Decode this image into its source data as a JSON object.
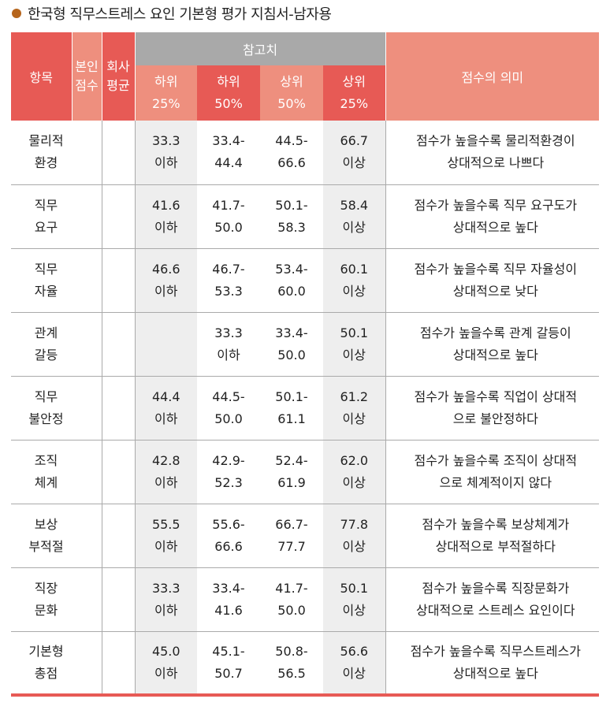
{
  "title": "한국형 직무스트레스 요인 기본형 평가 지침서-남자용",
  "colors": {
    "accent_red": "#e75a55",
    "accent_light": "#ee8f7e",
    "ref_gray": "#a9a9a9",
    "bullet": "#b6651c"
  },
  "header": {
    "item": "항목",
    "self_score": [
      "본인",
      "점수"
    ],
    "company_avg": [
      "회사",
      "평균"
    ],
    "reference": "참고치",
    "meaning": "점수의 의미",
    "sub": [
      [
        "하위",
        "25%"
      ],
      [
        "하위",
        "50%"
      ],
      [
        "상위",
        "50%"
      ],
      [
        "상위",
        "25%"
      ]
    ]
  },
  "rows": [
    {
      "item": [
        "물리적",
        "환경"
      ],
      "ref": [
        [
          "33.3",
          "이하"
        ],
        [
          "33.4-",
          "44.4"
        ],
        [
          "44.5-",
          "66.6"
        ],
        [
          "66.7",
          "이상"
        ]
      ],
      "meaning": [
        "점수가 높을수록  물리적환경이",
        "상대적으로 나쁘다"
      ]
    },
    {
      "item": [
        "직무",
        "요구"
      ],
      "ref": [
        [
          "41.6",
          "이하"
        ],
        [
          "41.7-",
          "50.0"
        ],
        [
          "50.1-",
          "58.3"
        ],
        [
          "58.4",
          "이상"
        ]
      ],
      "meaning": [
        "점수가 높을수록  직무  요구도가",
        "상대적으로 높다"
      ]
    },
    {
      "item": [
        "직무",
        "자율"
      ],
      "ref": [
        [
          "46.6",
          "이하"
        ],
        [
          "46.7-",
          "53.3"
        ],
        [
          "53.4-",
          "60.0"
        ],
        [
          "60.1",
          "이상"
        ]
      ],
      "meaning": [
        "점수가 높을수록  직무  자율성이",
        "상대적으로 낮다"
      ]
    },
    {
      "item": [
        "관계",
        "갈등"
      ],
      "ref": [
        [
          "",
          ""
        ],
        [
          "33.3",
          "이하"
        ],
        [
          "33.4-",
          "50.0"
        ],
        [
          "50.1",
          "이상"
        ]
      ],
      "meaning": [
        "점수가 높을수록 관계 갈등이",
        "상대적으로 높다"
      ]
    },
    {
      "item": [
        "직무",
        "불안정"
      ],
      "ref": [
        [
          "44.4",
          "이하"
        ],
        [
          "44.5-",
          "50.0"
        ],
        [
          "50.1-",
          "61.1"
        ],
        [
          "61.2",
          "이상"
        ]
      ],
      "meaning": [
        "점수가 높을수록  직업이 상대적",
        "으로 불안정하다"
      ]
    },
    {
      "item": [
        "조직",
        "체계"
      ],
      "ref": [
        [
          "42.8",
          "이하"
        ],
        [
          "42.9-",
          "52.3"
        ],
        [
          "52.4-",
          "61.9"
        ],
        [
          "62.0",
          "이상"
        ]
      ],
      "meaning": [
        "점수가 높을수록  조직이 상대적",
        "으로 체계적이지 않다"
      ]
    },
    {
      "item": [
        "보상",
        "부적절"
      ],
      "ref": [
        [
          "55.5",
          "이하"
        ],
        [
          "55.6-",
          "66.6"
        ],
        [
          "66.7-",
          "77.7"
        ],
        [
          "77.8",
          "이상"
        ]
      ],
      "meaning": [
        "점수가 높을수록 보상체계가",
        "상대적으로 부적절하다"
      ]
    },
    {
      "item": [
        "직장",
        "문화"
      ],
      "ref": [
        [
          "33.3",
          "이하"
        ],
        [
          "33.4-",
          "41.6"
        ],
        [
          "41.7-",
          "50.0"
        ],
        [
          "50.1",
          "이상"
        ]
      ],
      "meaning": [
        "점수가 높을수록 직장문화가",
        "상대적으로 스트레스 요인이다"
      ]
    },
    {
      "item": [
        "기본형",
        "총점"
      ],
      "ref": [
        [
          "45.0",
          "이하"
        ],
        [
          "45.1-",
          "50.7"
        ],
        [
          "50.8-",
          "56.5"
        ],
        [
          "56.6",
          "이상"
        ]
      ],
      "meaning": [
        "점수가 높을수록 직무스트레스가",
        "상대적으로 높다"
      ]
    }
  ]
}
